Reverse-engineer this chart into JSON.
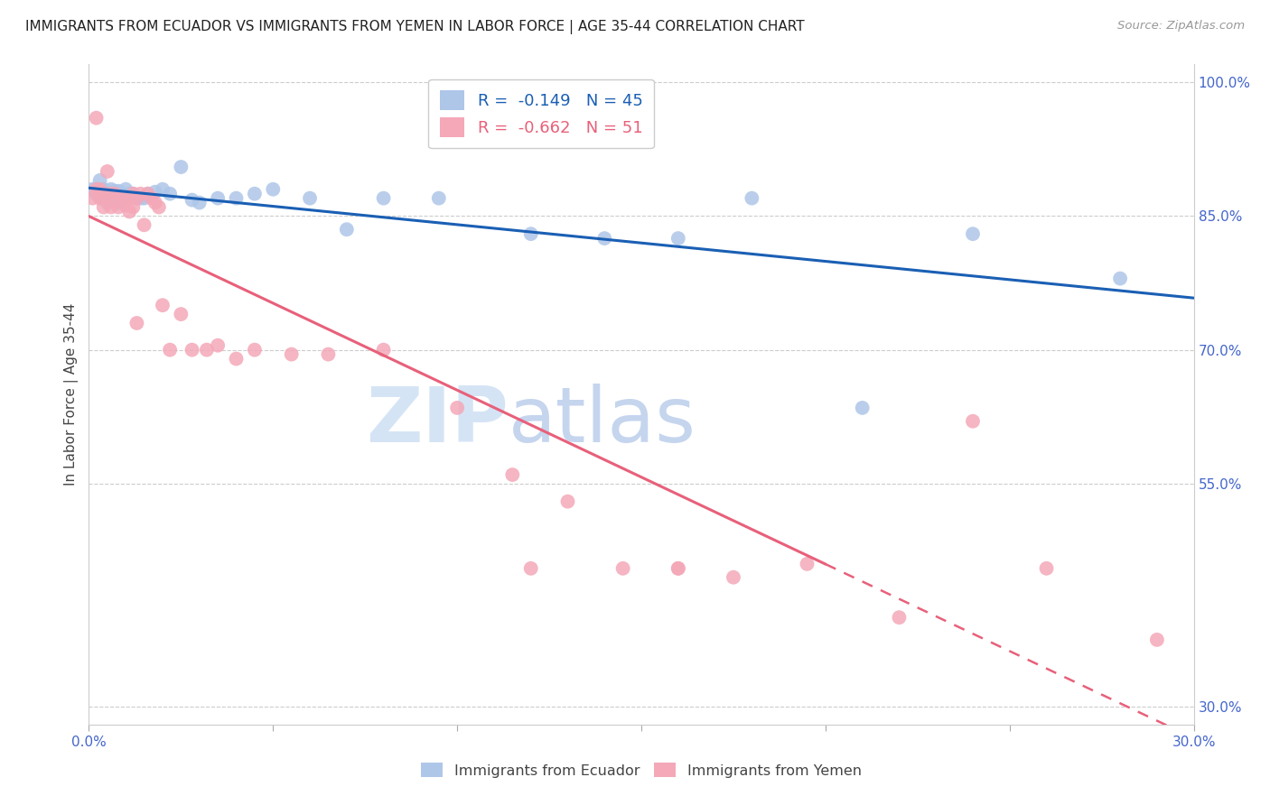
{
  "title": "IMMIGRANTS FROM ECUADOR VS IMMIGRANTS FROM YEMEN IN LABOR FORCE | AGE 35-44 CORRELATION CHART",
  "source": "Source: ZipAtlas.com",
  "ylabel": "In Labor Force | Age 35-44",
  "xlim": [
    0.0,
    0.3
  ],
  "ylim": [
    0.28,
    1.02
  ],
  "ecuador_R": -0.149,
  "ecuador_N": 45,
  "yemen_R": -0.662,
  "yemen_N": 51,
  "ecuador_color": "#aec6e8",
  "yemen_color": "#f4a8b8",
  "ecuador_line_color": "#1a5fb4",
  "yemen_line_color": "#e8607a",
  "watermark_zip": "ZIP",
  "watermark_atlas": "atlas",
  "watermark_color_zip": "#d0dff5",
  "watermark_color_atlas": "#c8d8f0",
  "ecuador_x": [
    0.001,
    0.002,
    0.003,
    0.003,
    0.004,
    0.004,
    0.005,
    0.005,
    0.005,
    0.006,
    0.006,
    0.007,
    0.007,
    0.008,
    0.008,
    0.009,
    0.01,
    0.01,
    0.011,
    0.012,
    0.013,
    0.014,
    0.015,
    0.016,
    0.018,
    0.02,
    0.022,
    0.025,
    0.028,
    0.03,
    0.035,
    0.04,
    0.045,
    0.05,
    0.06,
    0.07,
    0.08,
    0.095,
    0.12,
    0.14,
    0.16,
    0.18,
    0.21,
    0.24,
    0.28
  ],
  "ecuador_y": [
    0.88,
    0.875,
    0.89,
    0.875,
    0.88,
    0.87,
    0.875,
    0.87,
    0.865,
    0.88,
    0.875,
    0.878,
    0.87,
    0.878,
    0.865,
    0.875,
    0.88,
    0.87,
    0.875,
    0.875,
    0.87,
    0.87,
    0.87,
    0.875,
    0.877,
    0.88,
    0.875,
    0.905,
    0.868,
    0.865,
    0.87,
    0.87,
    0.875,
    0.88,
    0.87,
    0.835,
    0.87,
    0.87,
    0.83,
    0.825,
    0.825,
    0.87,
    0.635,
    0.83,
    0.78
  ],
  "yemen_x": [
    0.001,
    0.002,
    0.002,
    0.003,
    0.003,
    0.004,
    0.004,
    0.005,
    0.005,
    0.006,
    0.006,
    0.007,
    0.008,
    0.009,
    0.01,
    0.01,
    0.011,
    0.012,
    0.012,
    0.013,
    0.013,
    0.014,
    0.015,
    0.016,
    0.017,
    0.018,
    0.019,
    0.02,
    0.022,
    0.025,
    0.028,
    0.032,
    0.035,
    0.04,
    0.045,
    0.055,
    0.065,
    0.08,
    0.1,
    0.115,
    0.13,
    0.145,
    0.16,
    0.175,
    0.195,
    0.22,
    0.24,
    0.26,
    0.29,
    0.16,
    0.12
  ],
  "yemen_y": [
    0.87,
    0.96,
    0.88,
    0.88,
    0.87,
    0.875,
    0.86,
    0.9,
    0.87,
    0.875,
    0.86,
    0.875,
    0.86,
    0.87,
    0.862,
    0.87,
    0.855,
    0.875,
    0.86,
    0.87,
    0.73,
    0.875,
    0.84,
    0.875,
    0.87,
    0.865,
    0.86,
    0.75,
    0.7,
    0.74,
    0.7,
    0.7,
    0.705,
    0.69,
    0.7,
    0.695,
    0.695,
    0.7,
    0.635,
    0.56,
    0.53,
    0.455,
    0.455,
    0.445,
    0.46,
    0.4,
    0.62,
    0.455,
    0.375,
    0.455,
    0.455
  ]
}
